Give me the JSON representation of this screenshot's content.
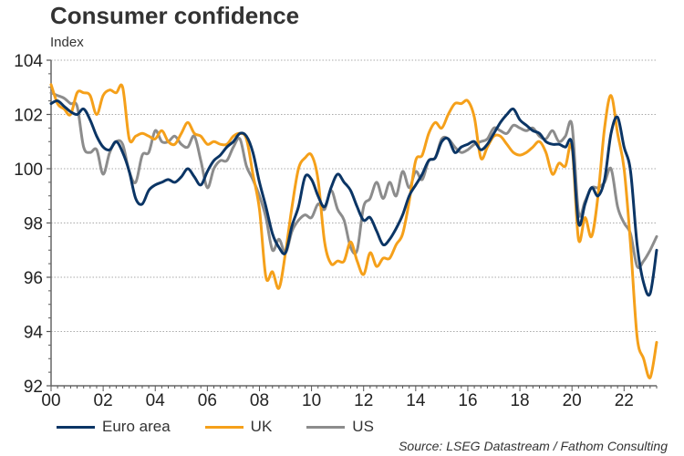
{
  "chart_data": {
    "type": "line",
    "title": "Consumer confidence",
    "ylabel": "Index",
    "xlabel": "",
    "ylim": [
      92,
      104
    ],
    "xlim": [
      2000,
      2023.25
    ],
    "yticks": [
      92,
      94,
      96,
      98,
      100,
      102,
      104
    ],
    "ytick_labels": [
      "92",
      "94",
      "96",
      "98",
      "100",
      "102",
      "104"
    ],
    "xticks": [
      2000,
      2002,
      2004,
      2006,
      2008,
      2010,
      2012,
      2014,
      2016,
      2018,
      2020,
      2022
    ],
    "xtick_labels": [
      "00",
      "02",
      "04",
      "06",
      "08",
      "10",
      "12",
      "14",
      "16",
      "18",
      "20",
      "22"
    ],
    "grid": "horizontal-dotted",
    "legend_position": "bottom-left",
    "series": [
      {
        "name": "Euro area",
        "color": "#0b3565",
        "x": [
          2000,
          2000.25,
          2000.5,
          2000.75,
          2001,
          2001.25,
          2001.5,
          2001.75,
          2002,
          2002.25,
          2002.5,
          2002.75,
          2003,
          2003.25,
          2003.5,
          2003.75,
          2004,
          2004.25,
          2004.5,
          2004.75,
          2005,
          2005.25,
          2005.5,
          2005.75,
          2006,
          2006.25,
          2006.5,
          2006.75,
          2007,
          2007.25,
          2007.5,
          2007.75,
          2008,
          2008.25,
          2008.5,
          2008.75,
          2009,
          2009.25,
          2009.5,
          2009.75,
          2010,
          2010.25,
          2010.5,
          2010.75,
          2011,
          2011.25,
          2011.5,
          2011.75,
          2012,
          2012.25,
          2012.5,
          2012.75,
          2013,
          2013.25,
          2013.5,
          2013.75,
          2014,
          2014.25,
          2014.5,
          2014.75,
          2015,
          2015.25,
          2015.5,
          2015.75,
          2016,
          2016.25,
          2016.5,
          2016.75,
          2017,
          2017.25,
          2017.5,
          2017.75,
          2018,
          2018.25,
          2018.5,
          2018.75,
          2019,
          2019.25,
          2019.5,
          2019.75,
          2020,
          2020.25,
          2020.5,
          2020.75,
          2021,
          2021.25,
          2021.5,
          2021.75,
          2022,
          2022.25,
          2022.5,
          2022.75,
          2023,
          2023.25
        ],
        "values": [
          102.4,
          102.5,
          102.3,
          102.1,
          102.0,
          102.2,
          101.8,
          101.2,
          100.8,
          100.7,
          101.0,
          100.6,
          99.9,
          98.9,
          98.7,
          99.2,
          99.4,
          99.5,
          99.6,
          99.5,
          99.7,
          100.0,
          99.7,
          99.4,
          99.9,
          100.3,
          100.5,
          100.8,
          101.0,
          101.3,
          101.2,
          100.6,
          99.5,
          98.6,
          97.6,
          97.1,
          96.9,
          97.9,
          98.6,
          99.7,
          99.6,
          99.0,
          98.6,
          99.3,
          99.8,
          99.5,
          99.2,
          98.6,
          98.1,
          98.2,
          97.7,
          97.2,
          97.4,
          97.8,
          98.3,
          99.0,
          99.4,
          99.8,
          100.3,
          100.4,
          101.0,
          101.1,
          100.6,
          100.8,
          100.9,
          101.0,
          100.7,
          100.9,
          101.3,
          101.7,
          102.0,
          102.2,
          101.8,
          101.6,
          101.4,
          101.3,
          101.0,
          100.9,
          100.9,
          100.8,
          100.9,
          98.0,
          98.7,
          99.3,
          99.0,
          99.6,
          101.3,
          101.9,
          100.8,
          99.9,
          97.2,
          95.8,
          95.4,
          97.0
        ]
      },
      {
        "name": "UK",
        "color": "#f5a01a",
        "x": [
          2000,
          2000.25,
          2000.5,
          2000.75,
          2001,
          2001.25,
          2001.5,
          2001.75,
          2002,
          2002.25,
          2002.5,
          2002.75,
          2003,
          2003.25,
          2003.5,
          2003.75,
          2004,
          2004.25,
          2004.5,
          2004.75,
          2005,
          2005.25,
          2005.5,
          2005.75,
          2006,
          2006.25,
          2006.5,
          2006.75,
          2007,
          2007.25,
          2007.5,
          2007.75,
          2008,
          2008.25,
          2008.5,
          2008.75,
          2009,
          2009.25,
          2009.5,
          2009.75,
          2010,
          2010.25,
          2010.5,
          2010.75,
          2011,
          2011.25,
          2011.5,
          2011.75,
          2012,
          2012.25,
          2012.5,
          2012.75,
          2013,
          2013.25,
          2013.5,
          2013.75,
          2014,
          2014.25,
          2014.5,
          2014.75,
          2015,
          2015.25,
          2015.5,
          2015.75,
          2016,
          2016.25,
          2016.5,
          2016.75,
          2017,
          2017.25,
          2017.5,
          2017.75,
          2018,
          2018.25,
          2018.5,
          2018.75,
          2019,
          2019.25,
          2019.5,
          2019.75,
          2020,
          2020.25,
          2020.5,
          2020.75,
          2021,
          2021.25,
          2021.5,
          2021.75,
          2022,
          2022.25,
          2022.5,
          2022.75,
          2023,
          2023.25
        ],
        "values": [
          103.1,
          102.4,
          102.2,
          102.0,
          102.8,
          102.8,
          102.7,
          102.0,
          102.7,
          102.9,
          102.8,
          103.0,
          101.1,
          101.2,
          101.3,
          101.2,
          101.1,
          101.4,
          101.0,
          100.9,
          101.3,
          101.7,
          101.3,
          101.2,
          100.9,
          101.0,
          100.9,
          100.9,
          101.2,
          101.3,
          101.1,
          99.8,
          98.5,
          96.0,
          96.2,
          95.6,
          96.9,
          98.6,
          100.0,
          100.4,
          100.5,
          99.6,
          97.3,
          96.5,
          96.6,
          96.6,
          97.3,
          96.6,
          96.1,
          96.9,
          96.4,
          96.7,
          96.7,
          97.2,
          97.6,
          98.8,
          100.3,
          100.5,
          101.3,
          101.7,
          101.5,
          102.0,
          102.4,
          102.4,
          102.5,
          101.9,
          100.4,
          100.8,
          101.2,
          101.2,
          100.9,
          100.6,
          100.5,
          100.6,
          100.8,
          101.0,
          100.6,
          99.8,
          100.2,
          100.1,
          100.8,
          97.4,
          98.2,
          97.5,
          99.0,
          101.5,
          102.7,
          101.3,
          100.0,
          97.2,
          93.8,
          93.0,
          92.3,
          93.6
        ]
      },
      {
        "name": "US",
        "color": "#8c8c8c",
        "x": [
          2000,
          2000.25,
          2000.5,
          2000.75,
          2001,
          2001.25,
          2001.5,
          2001.75,
          2002,
          2002.25,
          2002.5,
          2002.75,
          2003,
          2003.25,
          2003.5,
          2003.75,
          2004,
          2004.25,
          2004.5,
          2004.75,
          2005,
          2005.25,
          2005.5,
          2005.75,
          2006,
          2006.25,
          2006.5,
          2006.75,
          2007,
          2007.25,
          2007.5,
          2007.75,
          2008,
          2008.25,
          2008.5,
          2008.75,
          2009,
          2009.25,
          2009.5,
          2009.75,
          2010,
          2010.25,
          2010.5,
          2010.75,
          2011,
          2011.25,
          2011.5,
          2011.75,
          2012,
          2012.25,
          2012.5,
          2012.75,
          2013,
          2013.25,
          2013.5,
          2013.75,
          2014,
          2014.25,
          2014.5,
          2014.75,
          2015,
          2015.25,
          2015.5,
          2015.75,
          2016,
          2016.25,
          2016.5,
          2016.75,
          2017,
          2017.25,
          2017.5,
          2017.75,
          2018,
          2018.25,
          2018.5,
          2018.75,
          2019,
          2019.25,
          2019.5,
          2019.75,
          2020,
          2020.25,
          2020.5,
          2020.75,
          2021,
          2021.25,
          2021.5,
          2021.75,
          2022,
          2022.25,
          2022.5,
          2022.75,
          2023,
          2023.25
        ],
        "values": [
          102.8,
          102.7,
          102.6,
          102.4,
          102.3,
          100.8,
          100.6,
          100.7,
          99.8,
          100.6,
          101.0,
          100.9,
          99.9,
          99.5,
          100.5,
          100.6,
          101.4,
          101.0,
          101.0,
          101.2,
          100.9,
          100.8,
          101.2,
          100.3,
          99.3,
          100.0,
          100.3,
          100.3,
          100.8,
          101.1,
          100.1,
          99.6,
          99.0,
          98.2,
          97.0,
          97.4,
          96.9,
          97.7,
          98.1,
          98.3,
          98.2,
          98.7,
          98.5,
          99.2,
          98.5,
          98.1,
          97.1,
          97.0,
          98.6,
          98.9,
          99.5,
          98.9,
          99.5,
          99.0,
          99.9,
          99.3,
          99.9,
          99.6,
          100.3,
          100.4,
          101.1,
          101.1,
          100.8,
          100.6,
          100.7,
          100.9,
          101.0,
          101.1,
          101.5,
          101.4,
          101.3,
          101.6,
          101.5,
          101.4,
          101.5,
          101.2,
          101.1,
          101.4,
          101.0,
          101.2,
          101.6,
          98.4,
          98.8,
          99.3,
          99.3,
          99.5,
          100.0,
          98.6,
          98.0,
          97.6,
          96.4,
          96.6,
          97.0,
          97.5
        ]
      }
    ],
    "source": "Source: LSEG Datastream / Fathom Consulting"
  }
}
